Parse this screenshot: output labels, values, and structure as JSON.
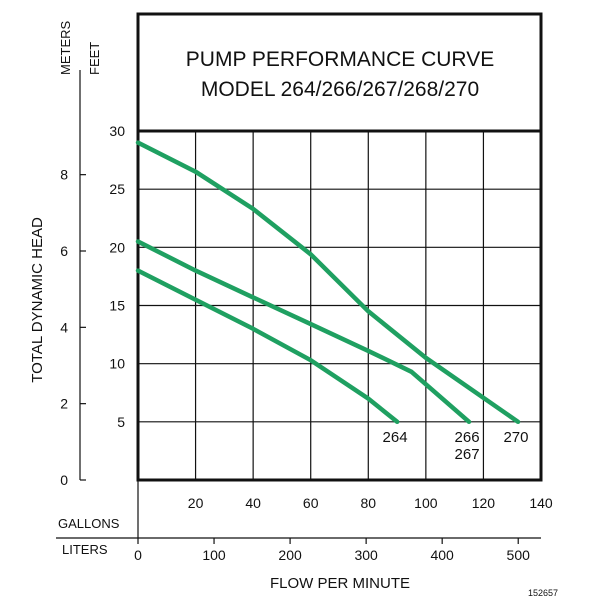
{
  "chart_data": {
    "type": "line",
    "title": "PUMP PERFORMANCE CURVE",
    "subtitle": "MODEL 264/266/267/268/270",
    "ylabel": "TOTAL DYNAMIC HEAD",
    "xlabel": "FLOW PER MINUTE",
    "y_unit_meters": "METERS",
    "y_unit_feet": "FEET",
    "x_unit_gallons": "GALLONS",
    "x_unit_liters": "LITERS",
    "figure_code": "152657",
    "xlim": [
      0,
      140
    ],
    "ylim": [
      0,
      30
    ],
    "grid": true,
    "line_color": "#1fa061",
    "feet_ticks": [
      {
        "value": 5,
        "label": "5"
      },
      {
        "value": 10,
        "label": "10"
      },
      {
        "value": 15,
        "label": "15"
      },
      {
        "value": 20,
        "label": "20"
      },
      {
        "value": 25,
        "label": "25"
      },
      {
        "value": 30,
        "label": "30"
      }
    ],
    "meter_ticks": [
      {
        "value": 0,
        "label": "0"
      },
      {
        "value": 2,
        "label": "2"
      },
      {
        "value": 4,
        "label": "4"
      },
      {
        "value": 6,
        "label": "6"
      },
      {
        "value": 8,
        "label": "8"
      }
    ],
    "gallon_ticks": [
      {
        "value": 20,
        "label": "20"
      },
      {
        "value": 40,
        "label": "40"
      },
      {
        "value": 60,
        "label": "60"
      },
      {
        "value": 80,
        "label": "80"
      },
      {
        "value": 100,
        "label": "100"
      },
      {
        "value": 120,
        "label": "120"
      },
      {
        "value": 140,
        "label": "140"
      }
    ],
    "liter_ticks": [
      {
        "value": 0,
        "label": "0"
      },
      {
        "value": 100,
        "label": "100"
      },
      {
        "value": 200,
        "label": "200"
      },
      {
        "value": 300,
        "label": "300"
      },
      {
        "value": 400,
        "label": "400"
      },
      {
        "value": 500,
        "label": "500"
      }
    ],
    "series": [
      {
        "name": "264",
        "x": [
          0,
          20,
          40,
          60,
          80,
          90
        ],
        "y": [
          18,
          15.5,
          13,
          10.3,
          7,
          5
        ]
      },
      {
        "name": "266 267",
        "x": [
          0,
          20,
          40,
          60,
          80,
          95,
          115
        ],
        "y": [
          20.5,
          18,
          15.7,
          13.4,
          11.1,
          9.3,
          5
        ]
      },
      {
        "name": "270",
        "x": [
          0,
          20,
          40,
          60,
          80,
          100,
          132
        ],
        "y": [
          29,
          26.5,
          23.3,
          19.4,
          14.5,
          10.5,
          5
        ]
      }
    ]
  }
}
